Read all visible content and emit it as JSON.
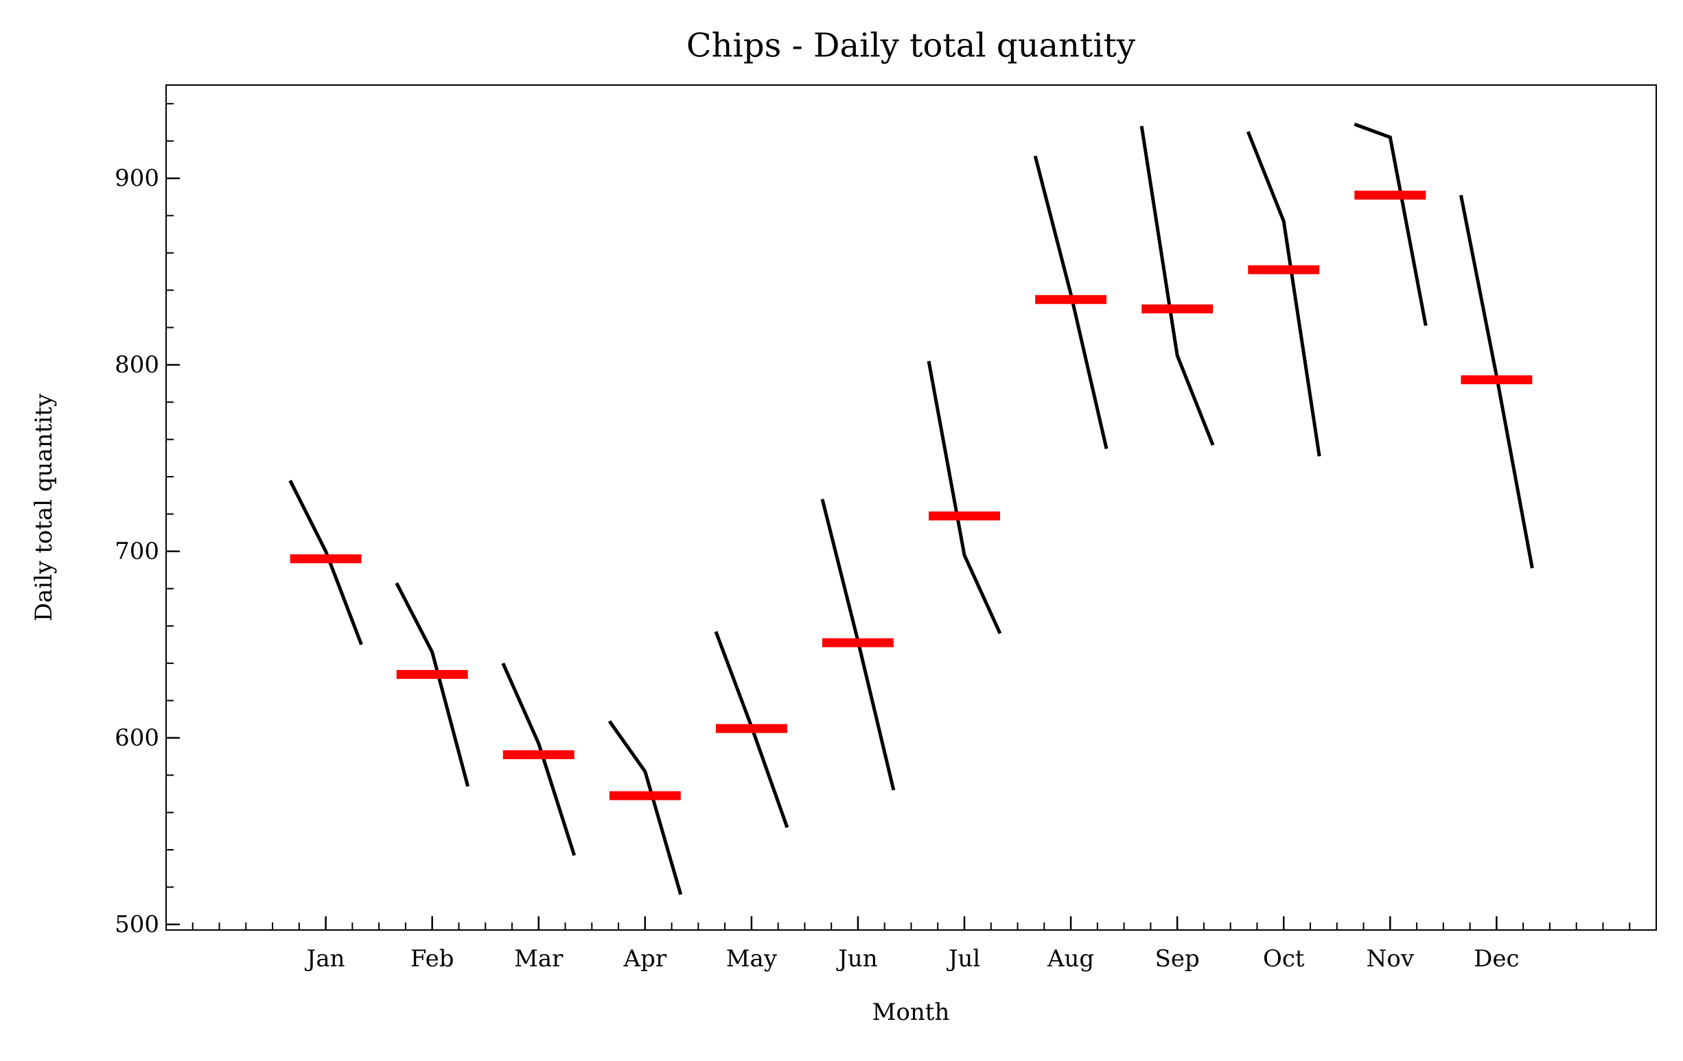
{
  "chart_data": {
    "type": "month_plot",
    "title": "Chips - Daily total quantity",
    "xlabel": "Month",
    "ylabel": "Daily total quantity",
    "categories": [
      "Jan",
      "Feb",
      "Mar",
      "Apr",
      "May",
      "Jun",
      "Jul",
      "Aug",
      "Sep",
      "Oct",
      "Nov",
      "Dec"
    ],
    "subseries": [
      [
        738,
        700,
        650
      ],
      [
        683,
        646,
        574
      ],
      [
        640,
        597,
        537
      ],
      [
        609,
        582,
        516
      ],
      [
        657,
        606,
        552
      ],
      [
        728,
        652,
        572
      ],
      [
        802,
        698,
        656
      ],
      [
        912,
        838,
        755
      ],
      [
        928,
        805,
        757
      ],
      [
        925,
        877,
        751
      ],
      [
        929,
        922,
        821
      ],
      [
        891,
        794,
        691
      ]
    ],
    "means": [
      696,
      634,
      591,
      569,
      605,
      651,
      719,
      835,
      830,
      851,
      891,
      792
    ],
    "line_color": "#000000",
    "mean_color": "#ff0000",
    "xlim": [
      -1.5,
      12.5
    ],
    "ylim": [
      497,
      950
    ],
    "yticks": [
      500,
      600,
      700,
      800,
      900
    ]
  }
}
